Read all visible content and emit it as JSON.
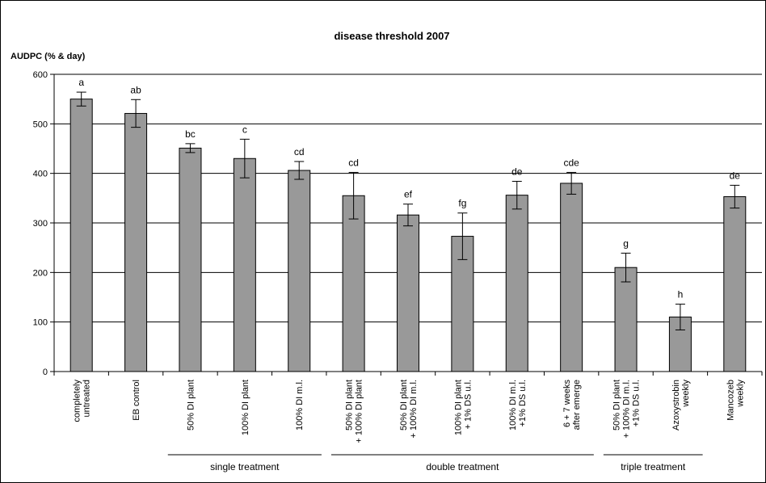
{
  "chart_data": {
    "type": "bar",
    "title": "disease threshold 2007",
    "ylabel": "AUDPC (% & day)",
    "ylim": [
      0,
      600
    ],
    "yticks": [
      0,
      100,
      200,
      300,
      400,
      500,
      600
    ],
    "grid": true,
    "categories": [
      [
        "completely",
        "untreated"
      ],
      [
        "EB control"
      ],
      [
        "50% DI plant"
      ],
      [
        "100% DI plant"
      ],
      [
        "100% DI m.l."
      ],
      [
        "50% DI plant",
        "+ 100% DI plant"
      ],
      [
        "50% DI plant",
        "+ 100% DI m.l."
      ],
      [
        "100% DI plant",
        "+ 1% DS u.l."
      ],
      [
        "100% DI m.l.",
        "+1% DS u.l."
      ],
      [
        "6 + 7 weeks",
        "after emerge"
      ],
      [
        "50% DI plant",
        "+ 100% DI m.l.",
        "+1% DS u.l."
      ],
      [
        "Azoxystrobin",
        "weekly"
      ],
      [
        "Mancozeb",
        "weekly"
      ]
    ],
    "values": [
      550,
      521,
      451,
      430,
      406,
      355,
      316,
      273,
      356,
      380,
      210,
      110,
      353
    ],
    "error": [
      14,
      28,
      9,
      39,
      18,
      47,
      22,
      47,
      28,
      22,
      29,
      26,
      23
    ],
    "significance_letters": [
      "a",
      "ab",
      "bc",
      "c",
      "cd",
      "cd",
      "ef",
      "fg",
      "de",
      "cde",
      "g",
      "h",
      "de"
    ],
    "bar_color": "#999999",
    "groups": [
      {
        "label": "single treatment",
        "from": 2,
        "to": 4
      },
      {
        "label": "double treatment",
        "from": 5,
        "to": 9
      },
      {
        "label": "triple treatment",
        "from": 10,
        "to": 11
      }
    ]
  }
}
